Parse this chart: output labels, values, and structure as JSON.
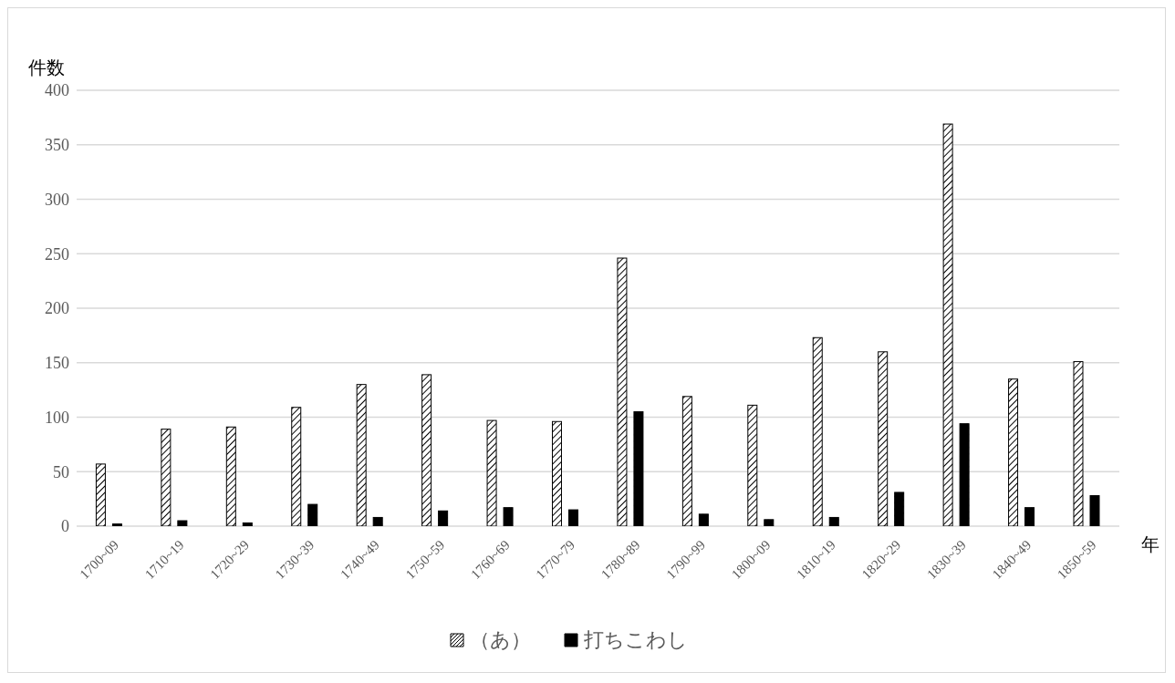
{
  "chart_data": {
    "type": "bar",
    "ylabel": "件数",
    "xlabel": "年",
    "categories": [
      "1700~09",
      "1710~19",
      "1720~29",
      "1730~39",
      "1740~49",
      "1750~59",
      "1760~69",
      "1770~79",
      "1780~89",
      "1790~99",
      "1800~09",
      "1810~19",
      "1820~29",
      "1830~39",
      "1840~49",
      "1850~59"
    ],
    "series": [
      {
        "name": "（あ）",
        "color": "#ffffff",
        "values": [
          57,
          89,
          91,
          109,
          130,
          139,
          97,
          96,
          246,
          119,
          111,
          173,
          160,
          369,
          135,
          151
        ]
      },
      {
        "name": "打ちこわし",
        "color": "#000000",
        "values": [
          2,
          5,
          3,
          20,
          8,
          14,
          17,
          15,
          105,
          11,
          6,
          8,
          31,
          94,
          17,
          28
        ]
      }
    ],
    "ylim": [
      0,
      400
    ],
    "yticks": [
      0,
      50,
      100,
      150,
      200,
      250,
      300,
      350,
      400
    ],
    "grid": "y",
    "legend": "bottom"
  }
}
